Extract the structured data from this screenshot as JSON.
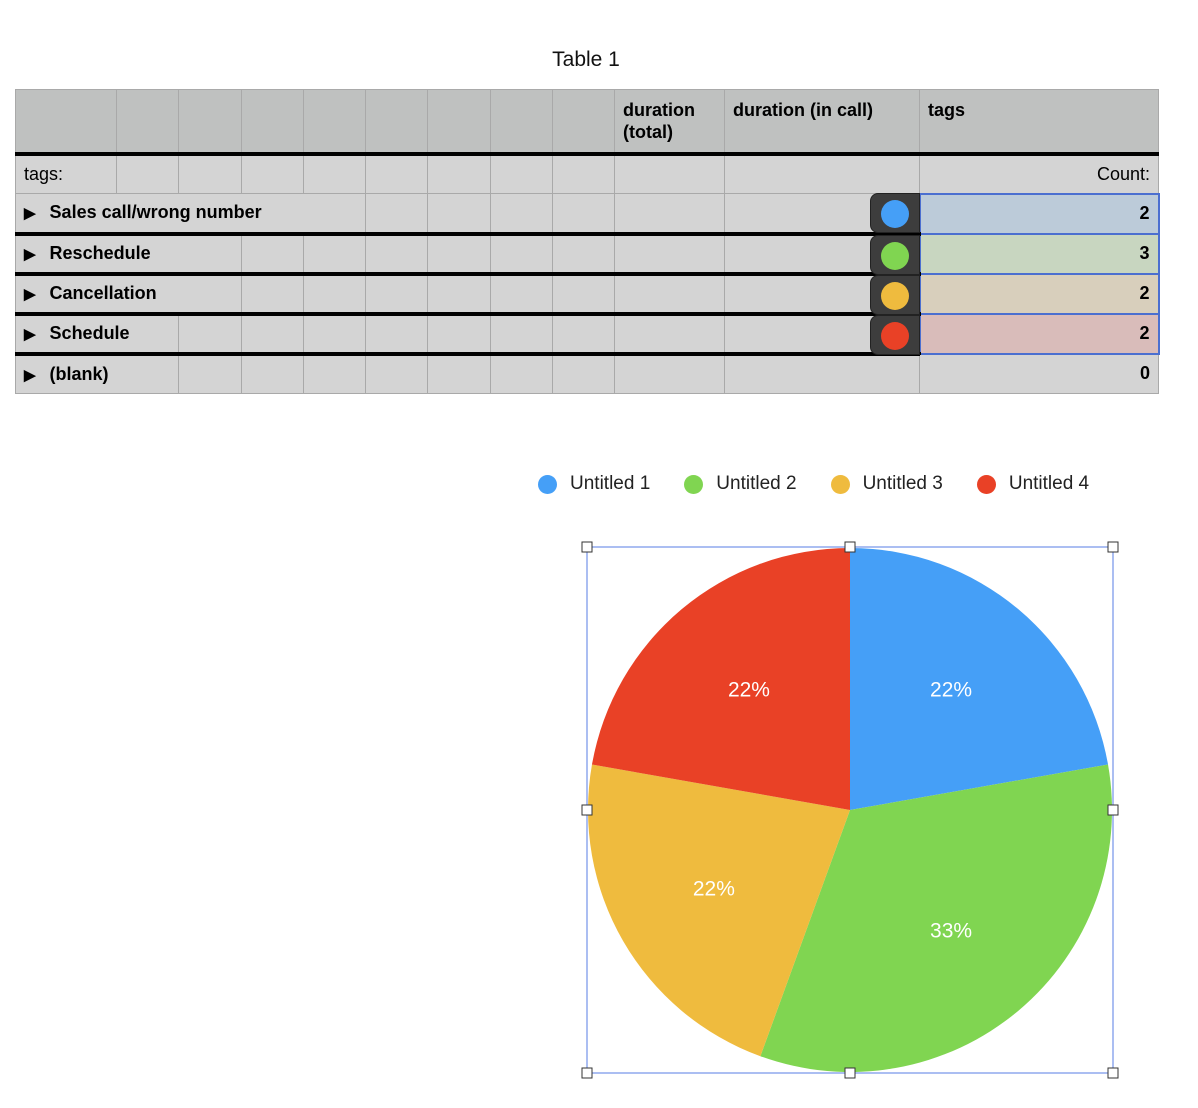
{
  "table": {
    "title": "Table 1",
    "headers": {
      "duration_total": "duration (total)",
      "duration_in_call": "duration (in call)",
      "tags": "tags"
    },
    "summary_row": {
      "label": "tags:",
      "count_label": "Count:"
    },
    "groups": [
      {
        "label": "Sales call/wrong number",
        "count": "2",
        "color": "#459ff7",
        "tint": "#bccbd9"
      },
      {
        "label": "Reschedule",
        "count": "3",
        "color": "#80d551",
        "tint": "#c8d6c0"
      },
      {
        "label": "Cancellation",
        "count": "2",
        "color": "#efbb3e",
        "tint": "#d8cfbc"
      },
      {
        "label": "Schedule",
        "count": "2",
        "color": "#e94126",
        "tint": "#d9bcba"
      },
      {
        "label": "(blank)",
        "count": "0"
      }
    ]
  },
  "chart_data": {
    "type": "pie",
    "legend_position": "top",
    "categories": [
      "Untitled 1",
      "Untitled 2",
      "Untitled 3",
      "Untitled 4"
    ],
    "values": [
      2,
      3,
      2,
      2
    ],
    "labels": [
      "22%",
      "33%",
      "22%",
      "22%"
    ],
    "colors": [
      "#459ff7",
      "#80d551",
      "#efbb3e",
      "#e94126"
    ]
  }
}
